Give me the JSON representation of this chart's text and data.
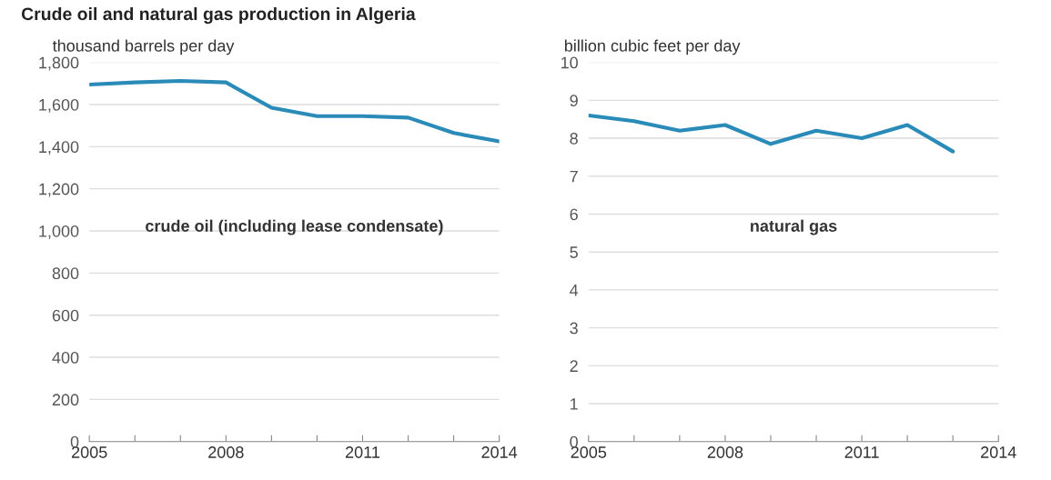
{
  "chart_data": [
    {
      "type": "line",
      "title": "Crude oil and natural gas production in Algeria",
      "ylabel": "thousand barrels per day",
      "x": [
        2005,
        2006,
        2007,
        2008,
        2009,
        2010,
        2011,
        2012,
        2013,
        2014
      ],
      "series": [
        {
          "name": "crude oil (including lease condensate)",
          "color": "#2a8ab8",
          "values": [
            1695,
            1705,
            1712,
            1705,
            1585,
            1545,
            1545,
            1538,
            1465,
            1425
          ]
        }
      ],
      "xlim": [
        2005,
        2014
      ],
      "xticks": [
        2005,
        {
          "value": 2006,
          "label": null
        },
        {
          "value": 2007,
          "label": null
        },
        2008,
        {
          "value": 2009,
          "label": null
        },
        {
          "value": 2010,
          "label": null
        },
        2011,
        {
          "value": 2012,
          "label": null
        },
        {
          "value": 2013,
          "label": null
        },
        2014
      ],
      "ylim": [
        0,
        1800
      ],
      "yticks": [
        0,
        {
          "value": 200,
          "label": "200"
        },
        400,
        600,
        800,
        {
          "value": 1000,
          "label": "1,000"
        },
        {
          "value": 1200,
          "label": "1,200"
        },
        {
          "value": 1400,
          "label": "1,400"
        },
        {
          "value": 1600,
          "label": "1,600"
        },
        {
          "value": 1800,
          "label": "1,800"
        }
      ],
      "grid": "y",
      "legend": false
    },
    {
      "type": "line",
      "ylabel": "billion cubic feet per day",
      "x": [
        2005,
        2006,
        2007,
        2008,
        2009,
        2010,
        2011,
        2012,
        2013
      ],
      "series": [
        {
          "name": "natural gas",
          "color": "#2a8ab8",
          "values": [
            8.6,
            8.45,
            8.2,
            8.35,
            7.85,
            8.2,
            8.0,
            8.35,
            7.65
          ]
        }
      ],
      "xlim": [
        2005,
        2014
      ],
      "xticks": [
        2005,
        {
          "value": 2006,
          "label": null
        },
        {
          "value": 2007,
          "label": null
        },
        2008,
        {
          "value": 2009,
          "label": null
        },
        {
          "value": 2010,
          "label": null
        },
        2011,
        {
          "value": 2012,
          "label": null
        },
        {
          "value": 2013,
          "label": null
        },
        2014
      ],
      "ylim": [
        0,
        10
      ],
      "yticks": [
        0,
        1,
        2,
        3,
        4,
        5,
        6,
        7,
        8,
        9,
        10
      ],
      "grid": "y",
      "legend": false
    }
  ]
}
